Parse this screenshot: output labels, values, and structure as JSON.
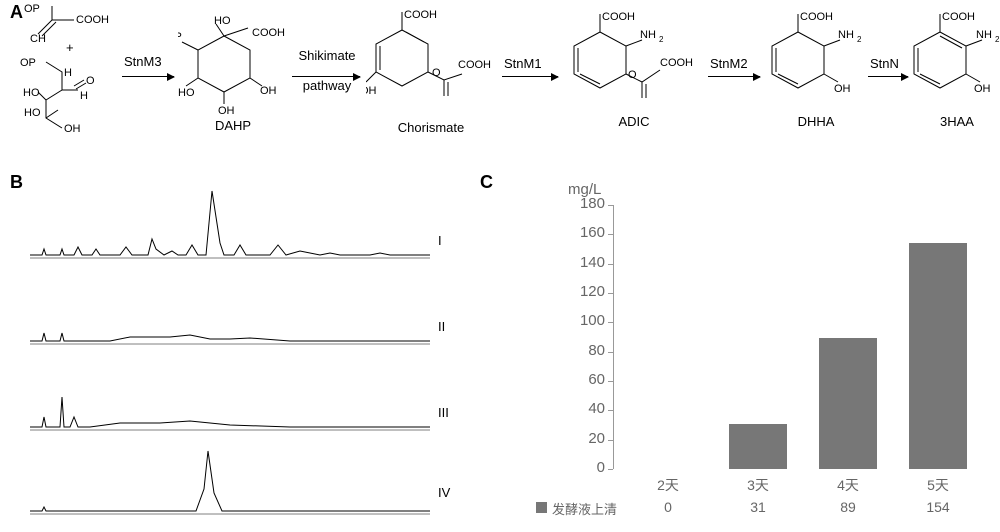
{
  "panels": {
    "a": "A",
    "b": "B",
    "c": "C"
  },
  "panelA": {
    "compounds": {
      "pep": {
        "svg": "pep_e4p"
      },
      "dahp": {
        "label": "DAHP"
      },
      "chor": {
        "label": "Chorismate"
      },
      "adic": {
        "label": "ADIC"
      },
      "dhha": {
        "label": "DHHA"
      },
      "haa": {
        "label": "3HAA"
      }
    },
    "reactions": {
      "r1": "StnM3",
      "r2a": "Shikimate",
      "r2b": "pathway",
      "r3": "StnM1",
      "r4": "StnM2",
      "r5": "StnN"
    }
  },
  "panelB": {
    "labels": {
      "I": "I",
      "II": "II",
      "III": "III",
      "IV": "IV"
    },
    "traces": {
      "I": [
        [
          0,
          70
        ],
        [
          12,
          70
        ],
        [
          14,
          64
        ],
        [
          16,
          70
        ],
        [
          22,
          70
        ],
        [
          30,
          70
        ],
        [
          32,
          64
        ],
        [
          34,
          70
        ],
        [
          44,
          70
        ],
        [
          48,
          62
        ],
        [
          52,
          70
        ],
        [
          62,
          70
        ],
        [
          66,
          64
        ],
        [
          70,
          70
        ],
        [
          90,
          70
        ],
        [
          96,
          62
        ],
        [
          102,
          70
        ],
        [
          118,
          70
        ],
        [
          122,
          54
        ],
        [
          126,
          64
        ],
        [
          134,
          70
        ],
        [
          142,
          66
        ],
        [
          148,
          70
        ],
        [
          156,
          70
        ],
        [
          162,
          60
        ],
        [
          168,
          70
        ],
        [
          176,
          70
        ],
        [
          182,
          6
        ],
        [
          190,
          58
        ],
        [
          194,
          70
        ],
        [
          204,
          70
        ],
        [
          210,
          60
        ],
        [
          216,
          70
        ],
        [
          240,
          70
        ],
        [
          248,
          60
        ],
        [
          256,
          70
        ],
        [
          270,
          66
        ],
        [
          290,
          70
        ],
        [
          300,
          68
        ],
        [
          310,
          70
        ],
        [
          340,
          70
        ],
        [
          350,
          68
        ],
        [
          360,
          70
        ],
        [
          400,
          70
        ]
      ],
      "II": [
        [
          0,
          70
        ],
        [
          12,
          70
        ],
        [
          14,
          62
        ],
        [
          16,
          70
        ],
        [
          22,
          70
        ],
        [
          30,
          70
        ],
        [
          32,
          62
        ],
        [
          34,
          70
        ],
        [
          80,
          70
        ],
        [
          100,
          66
        ],
        [
          140,
          66
        ],
        [
          160,
          64
        ],
        [
          180,
          68
        ],
        [
          200,
          68
        ],
        [
          220,
          67
        ],
        [
          260,
          70
        ],
        [
          300,
          70
        ],
        [
          400,
          70
        ]
      ],
      "III": [
        [
          0,
          70
        ],
        [
          12,
          70
        ],
        [
          14,
          60
        ],
        [
          16,
          70
        ],
        [
          20,
          70
        ],
        [
          30,
          70
        ],
        [
          32,
          40
        ],
        [
          34,
          70
        ],
        [
          40,
          70
        ],
        [
          44,
          60
        ],
        [
          48,
          70
        ],
        [
          60,
          70
        ],
        [
          90,
          66
        ],
        [
          130,
          66
        ],
        [
          160,
          64
        ],
        [
          200,
          68
        ],
        [
          260,
          70
        ],
        [
          400,
          70
        ]
      ],
      "IV": [
        [
          0,
          70
        ],
        [
          12,
          70
        ],
        [
          14,
          66
        ],
        [
          16,
          70
        ],
        [
          22,
          70
        ],
        [
          166,
          70
        ],
        [
          174,
          48
        ],
        [
          178,
          10
        ],
        [
          184,
          52
        ],
        [
          192,
          70
        ],
        [
          400,
          70
        ]
      ]
    },
    "line_color": "#000000",
    "line_width": 1
  },
  "panelC": {
    "categories": [
      "2天",
      "3天",
      "4天",
      "5天"
    ],
    "values": [
      0,
      31,
      89,
      154
    ],
    "ylim": [
      0,
      180
    ],
    "ytick_step": 20,
    "unit": "mg/L",
    "series_label": "发酵液上清",
    "bar_color": "#777777",
    "axis_color": "#999999",
    "text_color": "#666666"
  }
}
